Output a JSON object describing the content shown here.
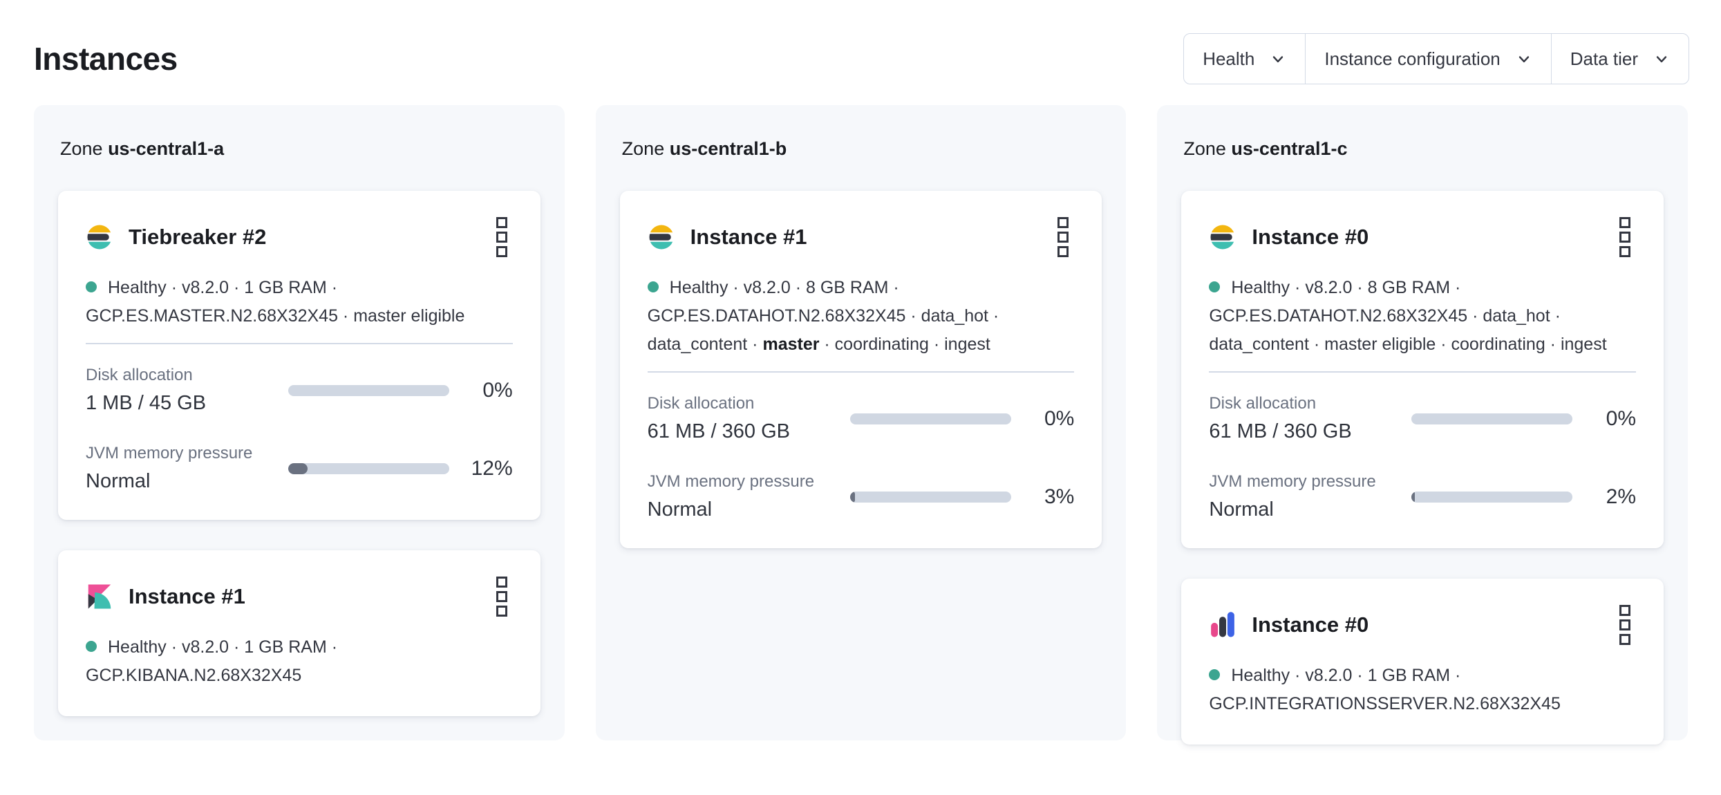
{
  "page": {
    "title": "Instances"
  },
  "filter_bar": {
    "buttons": [
      {
        "label": "Health"
      },
      {
        "label": "Instance configuration"
      },
      {
        "label": "Data tier"
      }
    ]
  },
  "health": {
    "status": "Healthy",
    "dot_color": "#3ca590"
  },
  "icons": {
    "elasticsearch-logo": "circle with yellow, dark and teal horizontal bands",
    "kibana-logo": "pink, dark and teal triangle/fan mark",
    "integrations-server-logo": "pink, dark and blue vertical bars",
    "boxes-vertical-icon": "three stacked hollow squares (actions menu)",
    "chevron-down-icon": "v-shaped arrow",
    "health-dot": "teal filled circle"
  },
  "colors": {
    "brand_yellow": "#f3b610",
    "brand_dark": "#343741",
    "brand_teal": "#3ebeb0",
    "brand_pink": "#ee5097",
    "brand_blue": "#3d63e6",
    "panel_bg": "#f6f8fb",
    "progress_track": "#d0d7e2",
    "progress_fill": "#6a7180"
  },
  "zones": [
    {
      "label_prefix": "Zone",
      "name": "us-central1-a",
      "cards": [
        {
          "product": "elasticsearch",
          "icon": "elasticsearch-logo",
          "title": "Tiebreaker #2",
          "status_lines": [
            {
              "pre": "Healthy · v8.2.0 · 1 GB RAM ·",
              "bold": "",
              "post": ""
            },
            {
              "pre": "GCP.ES.MASTER.N2.68X32X45 · master eligible",
              "bold": "",
              "post": ""
            }
          ],
          "metrics": {
            "disk": {
              "label": "Disk allocation",
              "value": "1 MB / 45 GB",
              "percent_label": "0%",
              "fill_percent": 0
            },
            "jvm": {
              "label": "JVM memory pressure",
              "value": "Normal",
              "percent_label": "12%",
              "fill_percent": 12
            }
          }
        },
        {
          "product": "kibana",
          "icon": "kibana-logo",
          "title": "Instance #1",
          "status_lines": [
            {
              "pre": "Healthy · v8.2.0 · 1 GB RAM ·",
              "bold": "",
              "post": ""
            },
            {
              "pre": "GCP.KIBANA.N2.68X32X45",
              "bold": "",
              "post": ""
            }
          ]
        }
      ]
    },
    {
      "label_prefix": "Zone",
      "name": "us-central1-b",
      "cards": [
        {
          "product": "elasticsearch",
          "icon": "elasticsearch-logo",
          "title": "Instance #1",
          "status_lines": [
            {
              "pre": "Healthy · v8.2.0 · 8 GB RAM ·",
              "bold": "",
              "post": ""
            },
            {
              "pre": "GCP.ES.DATAHOT.N2.68X32X45 · data_hot ·",
              "bold": "",
              "post": ""
            },
            {
              "pre": "data_content · ",
              "bold": "master",
              "post": " · coordinating · ingest"
            }
          ],
          "metrics": {
            "disk": {
              "label": "Disk allocation",
              "value": "61 MB / 360 GB",
              "percent_label": "0%",
              "fill_percent": 0
            },
            "jvm": {
              "label": "JVM memory pressure",
              "value": "Normal",
              "percent_label": "3%",
              "fill_percent": 3
            }
          }
        }
      ]
    },
    {
      "label_prefix": "Zone",
      "name": "us-central1-c",
      "cards": [
        {
          "product": "elasticsearch",
          "icon": "elasticsearch-logo",
          "title": "Instance #0",
          "status_lines": [
            {
              "pre": "Healthy · v8.2.0 · 8 GB RAM ·",
              "bold": "",
              "post": ""
            },
            {
              "pre": "GCP.ES.DATAHOT.N2.68X32X45 · data_hot ·",
              "bold": "",
              "post": ""
            },
            {
              "pre": "data_content · master eligible · coordinating · ingest",
              "bold": "",
              "post": ""
            }
          ],
          "metrics": {
            "disk": {
              "label": "Disk allocation",
              "value": "61 MB / 360 GB",
              "percent_label": "0%",
              "fill_percent": 0
            },
            "jvm": {
              "label": "JVM memory pressure",
              "value": "Normal",
              "percent_label": "2%",
              "fill_percent": 2
            }
          }
        },
        {
          "product": "integrations_server",
          "icon": "integrations-server-logo",
          "title": "Instance #0",
          "status_lines": [
            {
              "pre": "Healthy · v8.2.0 · 1 GB RAM ·",
              "bold": "",
              "post": ""
            },
            {
              "pre": "GCP.INTEGRATIONSSERVER.N2.68X32X45",
              "bold": "",
              "post": ""
            }
          ]
        }
      ]
    }
  ]
}
